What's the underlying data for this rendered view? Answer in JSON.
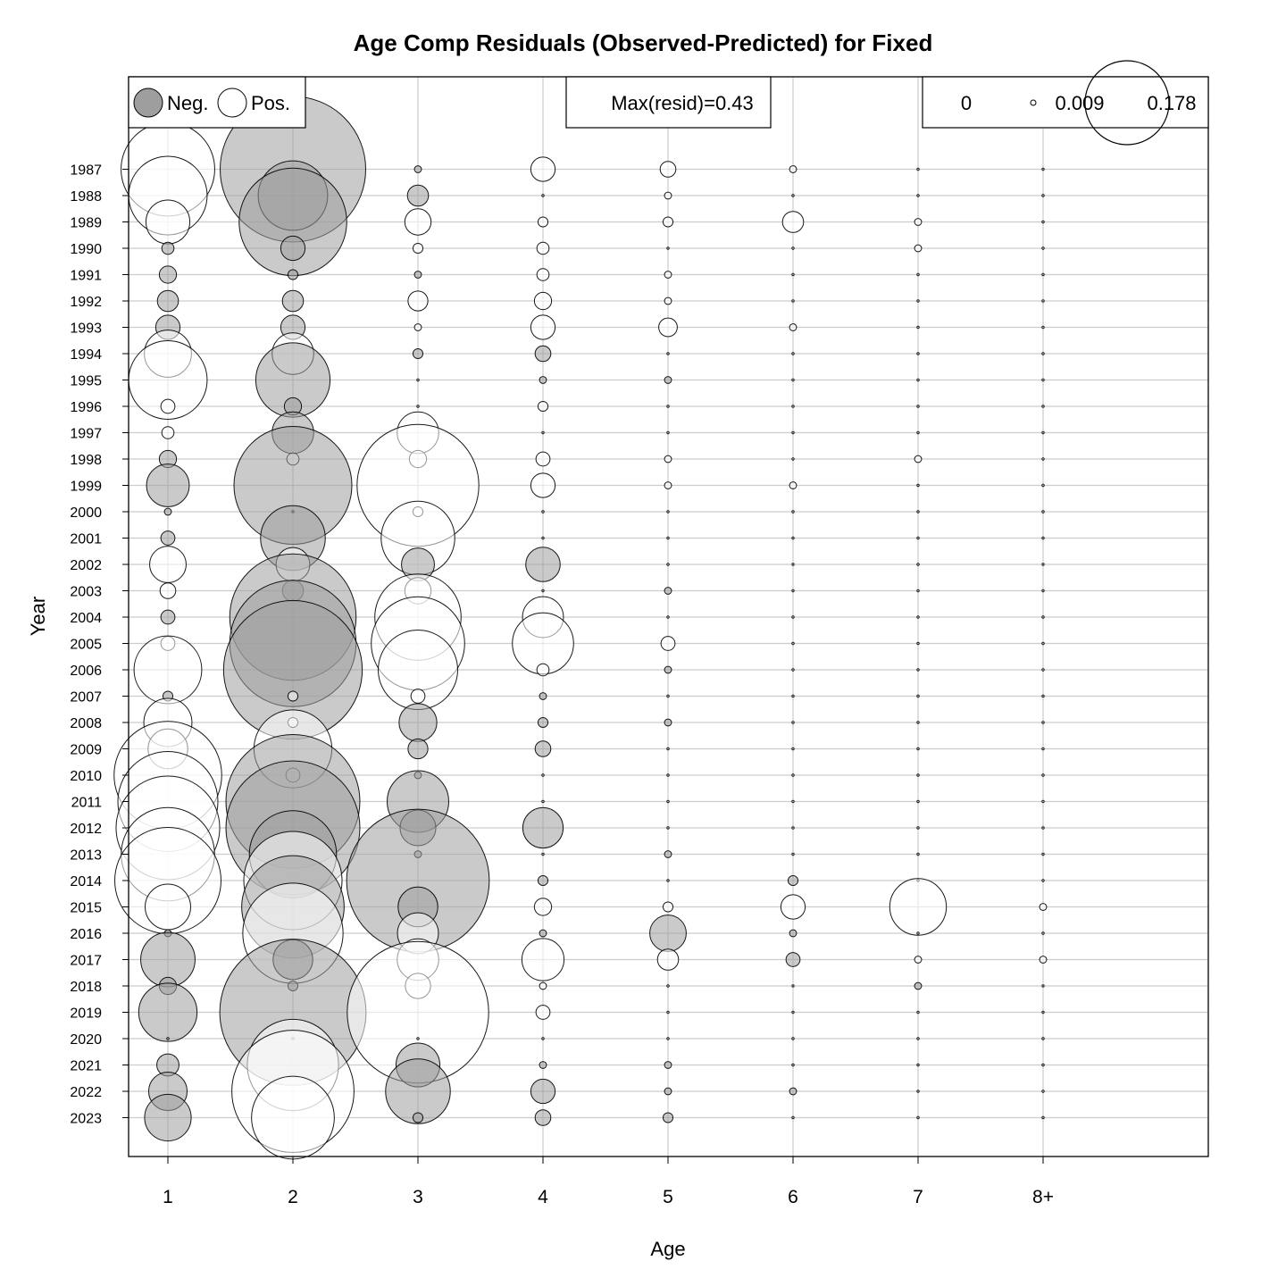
{
  "chart_data": {
    "type": "bubble",
    "title": "Age Comp Residuals (Observed-Predicted) for Fixed",
    "xlabel": "Age",
    "ylabel": "Year",
    "categories": [
      "1",
      "2",
      "3",
      "4",
      "5",
      "6",
      "7",
      "8+"
    ],
    "years": [
      1987,
      1988,
      1989,
      1990,
      1991,
      1992,
      1993,
      1994,
      1995,
      1996,
      1997,
      1998,
      1999,
      2000,
      2001,
      2002,
      2003,
      2004,
      2005,
      2006,
      2007,
      2008,
      2009,
      2010,
      2011,
      2012,
      2013,
      2014,
      2015,
      2016,
      2017,
      2018,
      2019,
      2020,
      2021,
      2022,
      2023
    ],
    "grid": true,
    "legend": {
      "neg_label": "Neg.",
      "pos_label": "Pos.",
      "max_resid_text": "Max(resid)=0.43",
      "size_labels": [
        "0",
        "0.009",
        "0.178"
      ],
      "size_values": [
        0,
        0.009,
        0.178
      ]
    },
    "colors": {
      "negative_fill": "#9e9e9e",
      "positive_fill": "#ffffff",
      "outline": "#000000",
      "grid": "#cccccc"
    },
    "series": [
      {
        "name": "1",
        "values": [
          0.178,
          0.125,
          0.039,
          -0.003,
          -0.006,
          -0.009,
          -0.012,
          0.045,
          0.125,
          0.004,
          0.003,
          -0.006,
          -0.037,
          -0.001,
          -0.004,
          0.027,
          0.005,
          -0.004,
          0.004,
          0.093,
          -0.002,
          0.047,
          0.032,
          0.235,
          0.203,
          0.218,
          0.177,
          0.229,
          0.042,
          -0.001,
          -0.06,
          -0.006,
          -0.069,
          0.0,
          -0.01,
          -0.03,
          -0.044
        ]
      },
      {
        "name": "2",
        "values": [
          -0.43,
          -0.098,
          -0.235,
          -0.012,
          -0.002,
          -0.009,
          -0.012,
          0.035,
          -0.112,
          -0.006,
          -0.035,
          0.003,
          -0.282,
          0.0,
          -0.085,
          0.023,
          -0.009,
          -0.324,
          -0.324,
          -0.39,
          0.002,
          0.002,
          0.123,
          0.004,
          -0.364,
          -0.364,
          -0.154,
          0.196,
          -0.213,
          0.204,
          -0.032,
          -0.002,
          -0.434,
          0.0,
          0.169,
          0.303,
          0.139
        ]
      },
      {
        "name": "3",
        "values": [
          -0.001,
          -0.009,
          0.014,
          0.002,
          -0.001,
          0.008,
          0.001,
          -0.002,
          0.0,
          0.0,
          0.035,
          0.006,
          0.301,
          0.002,
          0.11,
          -0.022,
          0.014,
          0.151,
          0.177,
          0.128,
          0.004,
          -0.029,
          -0.008,
          -0.001,
          -0.077,
          -0.026,
          -0.001,
          -0.413,
          -0.032,
          0.034,
          0.035,
          0.013,
          0.406,
          0.0,
          -0.039,
          -0.085,
          -0.002
        ]
      },
      {
        "name": "4",
        "values": [
          0.012,
          0.0,
          0.002,
          0.003,
          0.003,
          0.006,
          0.012,
          -0.005,
          -0.001,
          0.002,
          0.0,
          0.004,
          0.012,
          0.0,
          0.0,
          -0.024,
          0.0,
          0.034,
          0.076,
          0.003,
          -0.001,
          -0.002,
          -0.005,
          0.0,
          0.0,
          -0.033,
          0.0,
          -0.002,
          0.006,
          -0.001,
          0.036,
          0.001,
          0.004,
          0.0,
          -0.001,
          -0.012,
          -0.005
        ]
      },
      {
        "name": "5",
        "values": [
          0.005,
          0.001,
          0.002,
          0.0,
          0.001,
          0.001,
          0.007,
          0.0,
          -0.001,
          0.0,
          0.0,
          0.001,
          0.001,
          0.0,
          0.0,
          0.0,
          -0.001,
          0.0,
          0.004,
          -0.001,
          0.0,
          -0.001,
          0.0,
          0.0,
          0.0,
          0.0,
          -0.001,
          0.0,
          0.002,
          -0.027,
          0.009,
          0.0,
          0.0,
          0.0,
          -0.001,
          -0.001,
          -0.002
        ]
      },
      {
        "name": "6",
        "values": [
          0.001,
          0.0,
          0.009,
          0.0,
          0.0,
          0.0,
          0.001,
          0.0,
          0.0,
          0.0,
          0.0,
          0.0,
          0.001,
          0.0,
          0.0,
          0.0,
          0.0,
          0.0,
          0.0,
          0.0,
          0.0,
          0.0,
          0.0,
          0.0,
          0.0,
          0.0,
          0.0,
          -0.002,
          0.012,
          -0.001,
          -0.004,
          0.0,
          0.0,
          0.0,
          0.0,
          -0.001,
          0.0
        ]
      },
      {
        "name": "7",
        "values": [
          0.0,
          0.0,
          0.001,
          0.001,
          0.0,
          0.0,
          0.0,
          0.0,
          0.0,
          0.0,
          0.0,
          0.001,
          0.0,
          0.0,
          0.0,
          0.0,
          0.0,
          0.0,
          0.0,
          0.0,
          0.0,
          0.0,
          0.0,
          0.0,
          0.0,
          0.0,
          0.0,
          0.0,
          0.065,
          0.0,
          0.001,
          -0.001,
          0.0,
          0.0,
          0.0,
          0.0,
          0.0
        ]
      },
      {
        "name": "8+",
        "values": [
          0.0,
          0.0,
          0.0,
          0.0,
          0.0,
          0.0,
          0.0,
          0.0,
          0.0,
          0.0,
          0.0,
          0.0,
          0.0,
          0.0,
          0.0,
          0.0,
          0.0,
          0.0,
          0.0,
          0.0,
          0.0,
          0.0,
          0.0,
          0.0,
          0.0,
          0.0,
          0.0,
          0.0,
          0.001,
          0.0,
          0.001,
          0.0,
          0.0,
          0.0,
          0.0,
          0.0,
          0.0
        ]
      }
    ]
  }
}
